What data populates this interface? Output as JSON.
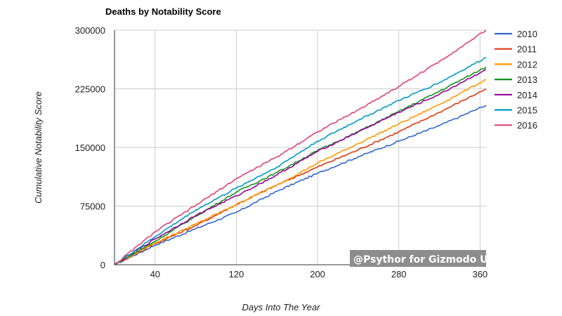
{
  "chart_data": {
    "type": "line",
    "title": "Deaths by Notability Score",
    "xlabel": "Days Into The Year",
    "ylabel": "Cumulative Notability Score",
    "xlim": [
      0,
      366
    ],
    "ylim": [
      0,
      300000
    ],
    "x_ticks": [
      "40",
      "120",
      "200",
      "280",
      "360"
    ],
    "y_ticks": [
      "0",
      "75000",
      "150000",
      "225000",
      "300000"
    ],
    "grid": true,
    "legend_position": "right",
    "annotation": "@Psythor for Gizmodo UK",
    "series": [
      {
        "name": "2010",
        "color": "#3366cc",
        "x": [
          0,
          40,
          80,
          120,
          160,
          200,
          240,
          280,
          320,
          366
        ],
        "values": [
          0,
          25000,
          46000,
          67000,
          94000,
          117000,
          138000,
          158000,
          178000,
          204000
        ]
      },
      {
        "name": "2011",
        "color": "#dc3912",
        "x": [
          0,
          40,
          80,
          120,
          160,
          200,
          240,
          280,
          320,
          366
        ],
        "values": [
          0,
          27000,
          50000,
          77000,
          102000,
          125000,
          147000,
          170000,
          195000,
          225000
        ]
      },
      {
        "name": "2012",
        "color": "#ff9900",
        "x": [
          0,
          40,
          80,
          120,
          160,
          200,
          240,
          280,
          320,
          366
        ],
        "values": [
          0,
          28000,
          52000,
          77000,
          102000,
          130000,
          155000,
          180000,
          205000,
          237000
        ]
      },
      {
        "name": "2013",
        "color": "#109618",
        "x": [
          0,
          40,
          80,
          120,
          160,
          200,
          240,
          280,
          320,
          366
        ],
        "values": [
          0,
          30000,
          62000,
          93000,
          118000,
          146000,
          170000,
          196000,
          222000,
          253000
        ]
      },
      {
        "name": "2014",
        "color": "#990099",
        "x": [
          0,
          40,
          80,
          120,
          160,
          200,
          240,
          280,
          320,
          366
        ],
        "values": [
          0,
          33000,
          63000,
          88000,
          115000,
          145000,
          170000,
          195000,
          218000,
          250000
        ]
      },
      {
        "name": "2015",
        "color": "#0099c6",
        "x": [
          0,
          40,
          80,
          120,
          160,
          200,
          240,
          280,
          320,
          366
        ],
        "values": [
          0,
          36000,
          70000,
          98000,
          125000,
          158000,
          185000,
          210000,
          233000,
          265000
        ]
      },
      {
        "name": "2016",
        "color": "#dd4477",
        "x": [
          0,
          40,
          80,
          120,
          160,
          200,
          240,
          280,
          320,
          366
        ],
        "values": [
          0,
          42000,
          76000,
          110000,
          138000,
          170000,
          198000,
          228000,
          260000,
          300000
        ]
      }
    ]
  }
}
